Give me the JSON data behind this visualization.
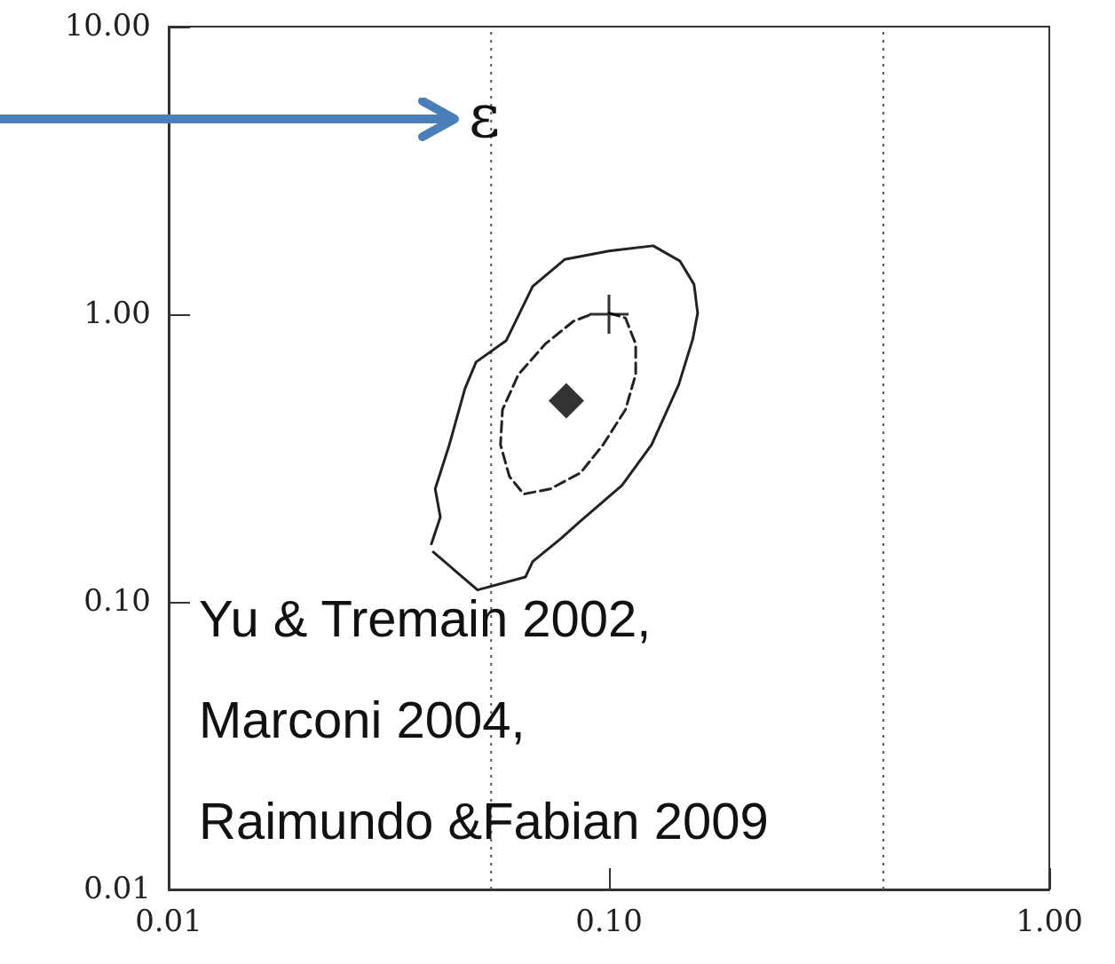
{
  "chart_data": {
    "type": "line",
    "log": "xy",
    "grid": false,
    "xlim": [
      0.01,
      1
    ],
    "xticks": [
      {
        "value": 0.01,
        "label": "0.01"
      },
      {
        "value": 0.1,
        "label": "0.10"
      },
      {
        "value": 1,
        "label": "1.00"
      }
    ],
    "ylim": [
      0.01,
      10
    ],
    "yticks": [
      {
        "value": 0.01,
        "label": "0.01"
      },
      {
        "value": 0.1,
        "label": "0.10"
      },
      {
        "value": 1,
        "label": "1.00"
      },
      {
        "value": 10,
        "label": "10.00"
      }
    ],
    "series": [
      {
        "color": "#222222",
        "line_style": "solid",
        "marker": "none",
        "x": [
          0.0395,
          0.0414,
          0.0403,
          0.0434,
          0.0471,
          0.0499,
          0.0584,
          0.0671,
          0.0793,
          0.1,
          0.126,
          0.145,
          0.156,
          0.159,
          0.155,
          0.144,
          0.125,
          0.107,
          0.0862,
          0.0778,
          0.0671,
          0.0646,
          0.0503,
          0.0399
        ],
        "values": [
          0.159,
          0.197,
          0.247,
          0.352,
          0.552,
          0.682,
          0.809,
          1.25,
          1.55,
          1.66,
          1.73,
          1.53,
          1.27,
          1.01,
          0.82,
          0.569,
          0.352,
          0.254,
          0.191,
          0.166,
          0.138,
          0.122,
          0.11,
          0.149
        ]
      },
      {
        "color": "#222222",
        "line_style": "dashed",
        "marker": "none",
        "x": [
          0.1,
          0.109,
          0.115,
          0.115,
          0.109,
          0.097,
          0.0862,
          0.0736,
          0.064,
          0.0594,
          0.0567,
          0.0573,
          0.0623,
          0.0716,
          0.083,
          0.0912
        ],
        "values": [
          1.01,
          0.97,
          0.787,
          0.618,
          0.466,
          0.352,
          0.281,
          0.247,
          0.237,
          0.273,
          0.352,
          0.466,
          0.618,
          0.787,
          0.945,
          1.0
        ]
      },
      {
        "type": "scatter",
        "color": "#000000",
        "marker": "diamond",
        "x": [
          0.08
        ],
        "values": [
          0.5
        ]
      },
      {
        "type": "scatter",
        "color": "#000000",
        "marker": "cross",
        "x": [
          0.1
        ],
        "values": [
          1.0
        ]
      }
    ],
    "ref_lines": [
      {
        "axis": "x",
        "value": 0.054,
        "label": null,
        "line_style": "dotted",
        "color": "#555555"
      },
      {
        "axis": "x",
        "value": 0.42,
        "label": null,
        "line_style": "dotted",
        "color": "#555555"
      }
    ],
    "annotations": [
      "ε",
      "Yu & Tremain 2002, Marconi 2004, Raimundo &Fabian 2009"
    ]
  }
}
